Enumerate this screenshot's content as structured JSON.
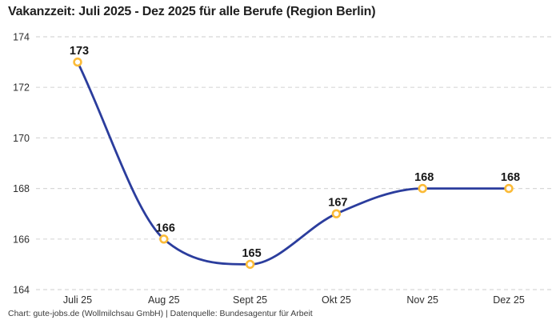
{
  "chart": {
    "title": "Vakanzzeit: Juli 2025 - Dez 2025 für alle Berufe (Region Berlin)",
    "footer": "Chart: gute-jobs.de (Wollmilchsau GmbH) | Datenquelle: Bundesagentur für Arbeit"
  },
  "chart_data": {
    "type": "line",
    "title": "Vakanzzeit: Juli 2025 - Dez 2025 für alle Berufe (Region Berlin)",
    "categories": [
      "Juli 25",
      "Aug 25",
      "Sept 25",
      "Okt 25",
      "Nov 25",
      "Dez 25"
    ],
    "values": [
      173,
      166,
      165,
      167,
      168,
      168
    ],
    "data_labels": [
      173,
      166,
      165,
      167,
      168,
      168
    ],
    "xlabel": "",
    "ylabel": "",
    "ylim": [
      164,
      174
    ],
    "yticks": [
      164,
      166,
      168,
      170,
      172,
      174
    ],
    "grid": "horizontal-dashed",
    "legend": "none",
    "smooth": true,
    "colors": {
      "line": "#2b3d9d",
      "marker_fill": "#ffffff",
      "marker_stroke": "#fbbb38",
      "gridline": "#d8d8d8",
      "tick_text": "#2e2e2e",
      "label_text": "#161616"
    }
  }
}
